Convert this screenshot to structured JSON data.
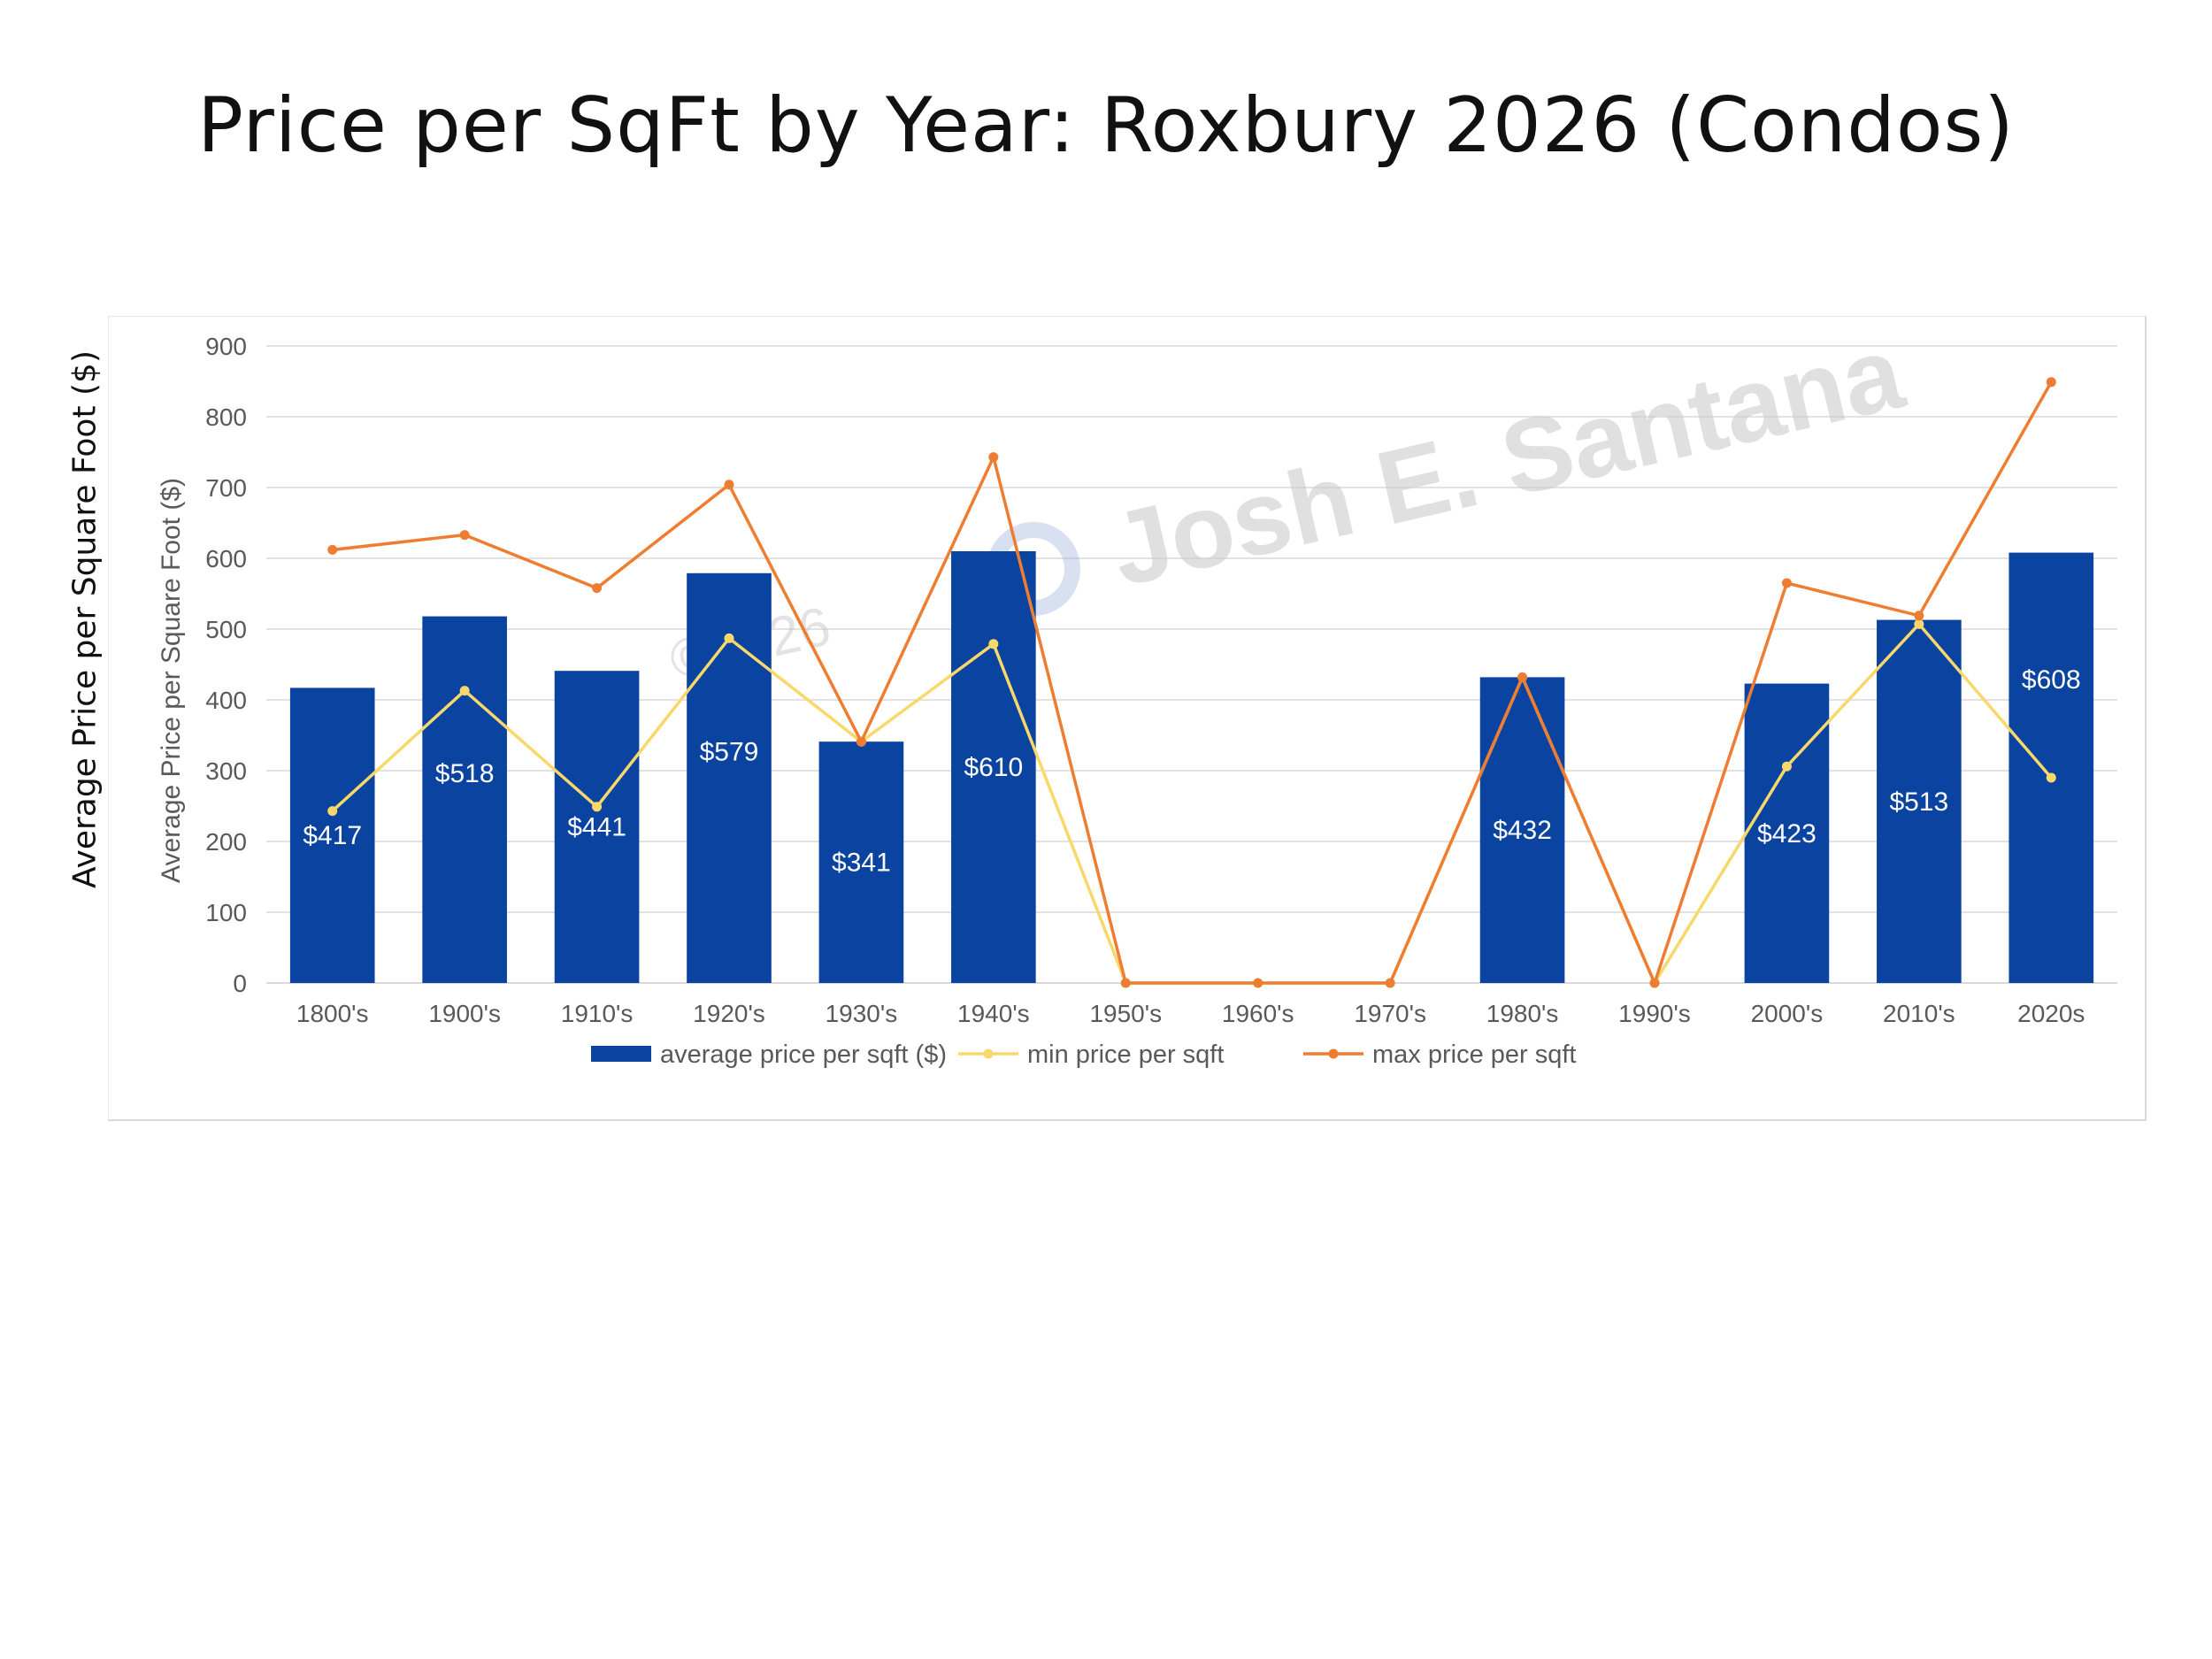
{
  "title": "Price per SqFt by Year: Roxbury 2026 (Condos)",
  "outer_ylabel": "Average Price per Square Foot ($)",
  "watermark": {
    "text": "Josh E. Santana",
    "copyright": "©2026"
  },
  "colors": {
    "bar": "#0b43a1",
    "min_line": "#f9d86b",
    "max_line": "#ef7d31",
    "grid": "#d9d9d9"
  },
  "chart_data": {
    "type": "bar",
    "title": "Price per SqFt by Year: Roxbury 2026 (Condos)",
    "ylabel": "Average Price per Square Foot ($)",
    "xlabel": "",
    "ylim": [
      0,
      900
    ],
    "yticks": [
      0,
      100,
      200,
      300,
      400,
      500,
      600,
      700,
      800,
      900
    ],
    "grid": true,
    "legend_position": "bottom",
    "categories": [
      "1800's",
      "1900's",
      "1910's",
      "1920's",
      "1930's",
      "1940's",
      "1950's",
      "1960's",
      "1970's",
      "1980's",
      "1990's",
      "2000's",
      "2010's",
      "2020s"
    ],
    "series": [
      {
        "name": "average price per sqft ($)",
        "type": "bar",
        "values": [
          417,
          518,
          441,
          579,
          341,
          610,
          0,
          0,
          0,
          432,
          0,
          423,
          513,
          608
        ],
        "labels": [
          "$417",
          "$518",
          "$441",
          "$579",
          "$341",
          "$610",
          "",
          "",
          "",
          "$432",
          "",
          "$423",
          "$513",
          "$608"
        ]
      },
      {
        "name": "min price per sqft",
        "type": "line",
        "values": [
          243,
          413,
          249,
          487,
          341,
          479,
          0,
          0,
          0,
          432,
          0,
          306,
          507,
          290
        ]
      },
      {
        "name": "max price per sqft",
        "type": "line",
        "values": [
          612,
          633,
          558,
          704,
          341,
          743,
          0,
          0,
          0,
          432,
          0,
          565,
          519,
          849
        ]
      }
    ]
  }
}
